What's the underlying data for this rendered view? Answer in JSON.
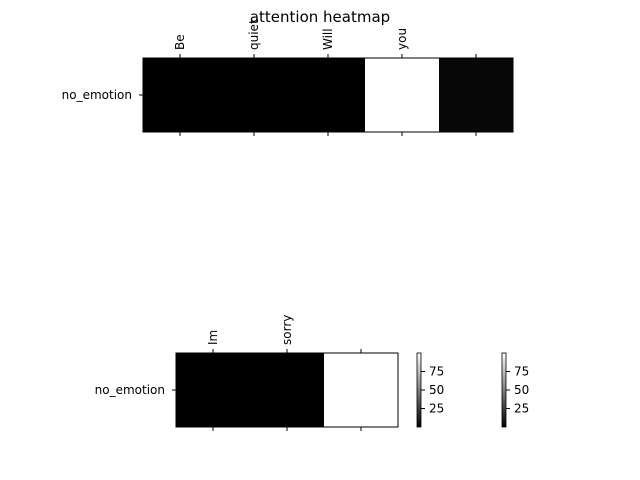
{
  "title": "attention heatmap",
  "chart_data": [
    {
      "type": "heatmap",
      "x_tick_labels": [
        "Be",
        "quiet",
        "Will",
        "you",
        ""
      ],
      "y_tick_labels": [
        "no_emotion"
      ],
      "values": [
        [
          0,
          0,
          0,
          100,
          3
        ]
      ],
      "cmap": "gray",
      "xlabel": "",
      "ylabel": ""
    },
    {
      "type": "heatmap",
      "x_tick_labels": [
        "Im",
        "sorry",
        ""
      ],
      "y_tick_labels": [
        "no_emotion"
      ],
      "values": [
        [
          0,
          0,
          100
        ]
      ],
      "cmap": "gray",
      "xlabel": "",
      "ylabel": ""
    }
  ],
  "colorbars": [
    {
      "ticks": [
        "25",
        "50",
        "75"
      ],
      "tick_values": [
        25,
        50,
        75
      ],
      "range": [
        0,
        100
      ]
    },
    {
      "ticks": [
        "25",
        "50",
        "75"
      ],
      "tick_values": [
        25,
        50,
        75
      ],
      "range": [
        0,
        100
      ]
    }
  ]
}
